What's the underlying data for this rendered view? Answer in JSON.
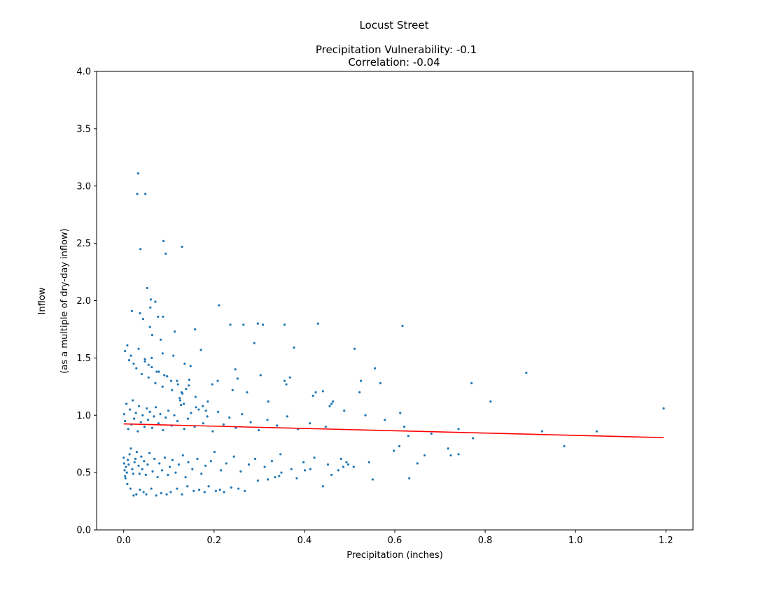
{
  "chart_data": {
    "type": "scatter",
    "title": "Locust Street",
    "subtitle_lines": [
      "Precipitation Vulnerability: -0.1",
      "Correlation: -0.04"
    ],
    "xlabel": "Precipitation (inches)",
    "ylabel_lines": [
      "Inflow",
      "(as a multiple of dry-day inflow)"
    ],
    "xlim": [
      -0.06,
      1.26
    ],
    "ylim": [
      0,
      4
    ],
    "xticks": [
      0.0,
      0.2,
      0.4,
      0.6,
      0.8,
      1.0,
      1.2
    ],
    "xtick_labels": [
      "0.0",
      "0.2",
      "0.4",
      "0.6",
      "0.8",
      "1.0",
      "1.2"
    ],
    "yticks": [
      0.0,
      0.5,
      1.0,
      1.5,
      2.0,
      2.5,
      3.0,
      3.5,
      4.0
    ],
    "ytick_labels": [
      "0.0",
      "0.5",
      "1.0",
      "1.5",
      "2.0",
      "2.5",
      "3.0",
      "3.5",
      "4.0"
    ],
    "grid": false,
    "legend": "none",
    "colors": {
      "points": "#1f77b4",
      "fit_line": "#ff0000"
    },
    "fit_line": {
      "x": [
        0.0,
        1.195
      ],
      "y": [
        0.925,
        0.805
      ]
    },
    "series": [
      {
        "x": [
          0.032,
          0.03,
          0.048,
          0.037,
          0.088,
          0.093,
          0.129,
          0.052,
          0.06,
          0.07,
          0.059,
          0.036,
          0.018,
          0.087,
          0.076,
          0.043,
          0.058,
          0.063,
          0.082,
          0.113,
          0.158,
          0.171,
          0.086,
          0.062,
          0.047,
          0.11,
          0.055,
          0.148,
          0.073,
          0.09,
          0.105,
          0.12,
          0.138,
          0.145,
          0.135,
          0.128,
          0.124,
          0.125,
          0.133,
          0.16,
          0.186,
          0.175,
          0.182,
          0.236,
          0.265,
          0.297,
          0.308,
          0.289,
          0.303,
          0.211,
          0.208,
          0.196,
          0.247,
          0.273,
          0.252,
          0.241,
          0.32,
          0.356,
          0.377,
          0.43,
          0.511,
          0.617,
          0.36,
          0.356,
          0.368,
          0.425,
          0.419,
          0.441,
          0.46,
          0.456,
          0.463,
          0.488,
          0.522,
          0.525,
          0.535,
          0.556,
          0.568,
          0.578,
          0.612,
          0.621,
          0.63,
          0.77,
          0.812,
          0.891,
          0.926,
          0.975,
          1.047,
          1.195,
          0.741,
          0.773,
          0.718,
          0.724,
          0.741,
          0.681,
          0.65,
          0.666,
          0.598,
          0.632,
          0.61,
          0.551,
          0.497,
          0.493,
          0.486,
          0.46,
          0.475,
          0.441,
          0.413,
          0.401,
          0.383,
          0.349,
          0.344,
          0.335,
          0.319,
          0.297,
          0.268,
          0.254,
          0.238,
          0.222,
          0.213,
          0.204,
          0.188,
          0.179,
          0.167,
          0.155,
          0.141,
          0.129,
          0.118,
          0.104,
          0.095,
          0.083,
          0.072,
          0.061,
          0.05,
          0.044,
          0.036,
          0.028,
          0.022,
          0.015,
          0.008,
          0.004,
          0.002,
          0.001,
          0.0,
          0.003,
          0.005,
          0.007,
          0.009,
          0.011,
          0.013,
          0.016,
          0.019,
          0.021,
          0.024,
          0.026,
          0.029,
          0.033,
          0.035,
          0.039,
          0.041,
          0.045,
          0.049,
          0.053,
          0.057,
          0.064,
          0.068,
          0.075,
          0.079,
          0.085,
          0.091,
          0.098,
          0.102,
          0.108,
          0.115,
          0.122,
          0.131,
          0.137,
          0.143,
          0.152,
          0.163,
          0.172,
          0.181,
          0.193,
          0.201,
          0.215,
          0.227,
          0.244,
          0.259,
          0.277,
          0.291,
          0.312,
          0.328,
          0.347,
          0.371,
          0.398,
          0.422,
          0.452,
          0.481,
          0.509,
          0.543,
          0.001,
          0.003,
          0.006,
          0.01,
          0.014,
          0.017,
          0.02,
          0.023,
          0.027,
          0.031,
          0.034,
          0.038,
          0.042,
          0.046,
          0.051,
          0.054,
          0.058,
          0.063,
          0.067,
          0.071,
          0.077,
          0.081,
          0.087,
          0.093,
          0.099,
          0.106,
          0.112,
          0.119,
          0.127,
          0.134,
          0.142,
          0.149,
          0.157,
          0.166,
          0.176,
          0.185,
          0.197,
          0.209,
          0.221,
          0.234,
          0.248,
          0.262,
          0.281,
          0.299,
          0.318,
          0.339,
          0.362,
          0.386,
          0.412,
          0.447,
          0.003,
          0.008,
          0.012,
          0.016,
          0.022,
          0.028,
          0.033,
          0.04,
          0.047,
          0.055,
          0.062,
          0.07,
          0.078,
          0.086,
          0.096,
          0.107,
          0.118,
          0.13,
          0.144,
          0.159
        ],
        "y": [
          3.11,
          2.93,
          2.93,
          2.45,
          2.52,
          2.41,
          2.47,
          2.11,
          2.01,
          1.99,
          1.94,
          1.89,
          1.91,
          1.86,
          1.86,
          1.84,
          1.77,
          1.7,
          1.66,
          1.73,
          1.75,
          1.57,
          1.54,
          1.5,
          1.47,
          1.52,
          1.44,
          1.43,
          1.38,
          1.35,
          1.3,
          1.27,
          1.23,
          1.31,
          1.45,
          1.2,
          1.15,
          1.13,
          1.1,
          1.07,
          1.12,
          1.08,
          1.04,
          1.79,
          1.79,
          1.8,
          1.79,
          1.63,
          1.35,
          1.96,
          1.3,
          1.27,
          1.4,
          1.2,
          1.32,
          1.22,
          1.12,
          1.79,
          1.59,
          1.8,
          1.58,
          1.78,
          1.27,
          1.3,
          1.33,
          1.2,
          1.17,
          1.21,
          1.1,
          1.08,
          1.12,
          1.04,
          1.2,
          1.3,
          1.0,
          1.41,
          1.28,
          0.96,
          1.02,
          0.9,
          0.82,
          1.28,
          1.12,
          1.37,
          0.86,
          0.73,
          0.86,
          1.06,
          0.88,
          0.8,
          0.71,
          0.65,
          0.66,
          0.84,
          0.58,
          0.65,
          0.69,
          0.45,
          0.73,
          0.44,
          0.57,
          0.59,
          0.55,
          0.48,
          0.52,
          0.38,
          0.53,
          0.52,
          0.45,
          0.5,
          0.47,
          0.46,
          0.44,
          0.43,
          0.34,
          0.36,
          0.37,
          0.33,
          0.35,
          0.34,
          0.38,
          0.33,
          0.35,
          0.34,
          0.38,
          0.31,
          0.36,
          0.33,
          0.31,
          0.32,
          0.3,
          0.36,
          0.31,
          0.33,
          0.35,
          0.31,
          0.3,
          0.36,
          0.4,
          0.45,
          0.52,
          0.58,
          0.63,
          0.47,
          0.55,
          0.5,
          0.61,
          0.57,
          0.66,
          0.71,
          0.53,
          0.49,
          0.59,
          0.62,
          0.68,
          0.56,
          0.49,
          0.64,
          0.53,
          0.6,
          0.48,
          0.57,
          0.67,
          0.51,
          0.62,
          0.46,
          0.58,
          0.52,
          0.63,
          0.48,
          0.55,
          0.61,
          0.5,
          0.57,
          0.65,
          0.46,
          0.59,
          0.53,
          0.62,
          0.49,
          0.56,
          0.6,
          0.68,
          0.52,
          0.58,
          0.64,
          0.51,
          0.57,
          0.62,
          0.55,
          0.6,
          0.66,
          0.53,
          0.59,
          0.63,
          0.57,
          0.62,
          0.55,
          0.59,
          1.01,
          0.95,
          1.1,
          0.88,
          1.05,
          0.92,
          1.13,
          0.97,
          1.02,
          0.86,
          1.08,
          0.94,
          1.0,
          0.9,
          1.06,
          0.96,
          1.03,
          0.89,
          0.99,
          1.07,
          0.93,
          1.01,
          0.87,
          0.98,
          1.04,
          0.91,
          1.0,
          0.95,
          1.09,
          0.88,
          0.97,
          1.02,
          0.9,
          1.05,
          0.93,
          0.99,
          0.86,
          1.03,
          0.92,
          0.98,
          0.89,
          1.01,
          0.94,
          0.87,
          0.96,
          0.91,
          0.99,
          0.88,
          0.93,
          0.9,
          1.56,
          1.61,
          1.48,
          1.52,
          1.45,
          1.41,
          1.58,
          1.36,
          1.49,
          1.33,
          1.42,
          1.28,
          1.38,
          1.25,
          1.34,
          1.22,
          1.3,
          1.19,
          1.26,
          1.16
        ]
      }
    ]
  }
}
